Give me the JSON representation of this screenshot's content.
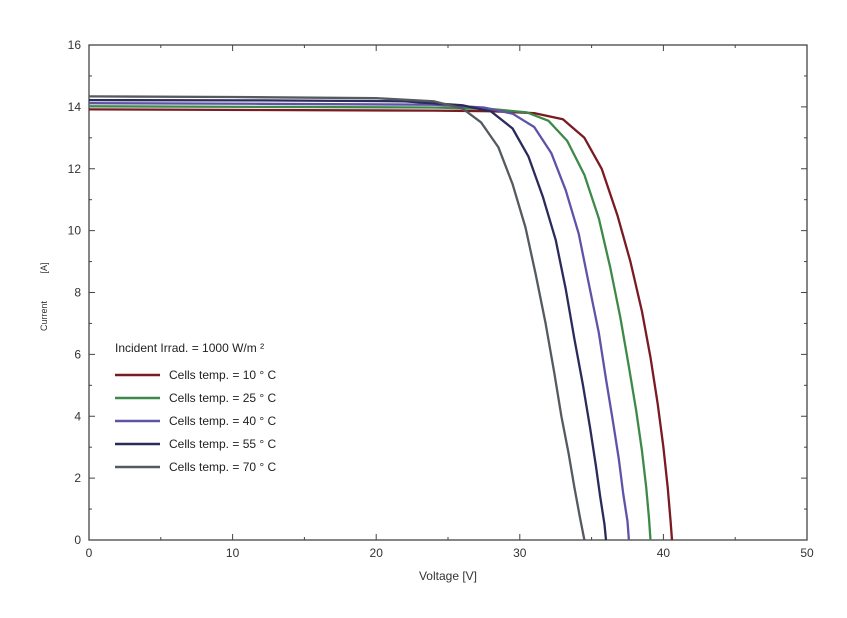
{
  "chart_data": {
    "type": "line",
    "title": "",
    "xlabel": "Voltage  [V]",
    "ylabel": "Current",
    "ylabel_unit": "[A]",
    "xlim": [
      0,
      50
    ],
    "ylim": [
      0,
      16
    ],
    "x_ticks": [
      "0",
      "10",
      "20",
      "30",
      "40",
      "50"
    ],
    "y_ticks": [
      "0",
      "2",
      "4",
      "6",
      "8",
      "10",
      "12",
      "14",
      "16"
    ],
    "grid": false,
    "legend_title": "Incident Irrad. = 1000 W/m ²",
    "legend_position": "lower-left",
    "series": [
      {
        "name": "Cells temp. = 10  ° C",
        "color": "#7a1a22",
        "points": [
          [
            0,
            13.92
          ],
          [
            12,
            13.9
          ],
          [
            24,
            13.88
          ],
          [
            28,
            13.86
          ],
          [
            31,
            13.8
          ],
          [
            33,
            13.6
          ],
          [
            34.5,
            13.0
          ],
          [
            35.7,
            12.0
          ],
          [
            36.8,
            10.5
          ],
          [
            37.7,
            9.0
          ],
          [
            38.5,
            7.4
          ],
          [
            39.1,
            5.9
          ],
          [
            39.6,
            4.4
          ],
          [
            40.0,
            3.0
          ],
          [
            40.3,
            1.7
          ],
          [
            40.5,
            0.6
          ],
          [
            40.6,
            0
          ]
        ]
      },
      {
        "name": "Cells temp. = 25  ° C",
        "color": "#3d8a48",
        "points": [
          [
            0,
            14.02
          ],
          [
            12,
            14.0
          ],
          [
            24,
            13.98
          ],
          [
            28,
            13.93
          ],
          [
            30.5,
            13.82
          ],
          [
            32,
            13.55
          ],
          [
            33.3,
            12.9
          ],
          [
            34.5,
            11.8
          ],
          [
            35.5,
            10.4
          ],
          [
            36.3,
            8.8
          ],
          [
            37.0,
            7.2
          ],
          [
            37.6,
            5.6
          ],
          [
            38.1,
            4.2
          ],
          [
            38.5,
            2.9
          ],
          [
            38.8,
            1.7
          ],
          [
            39.0,
            0.7
          ],
          [
            39.1,
            0
          ]
        ]
      },
      {
        "name": "Cells temp. = 40  ° C",
        "color": "#5d54a8",
        "points": [
          [
            0,
            14.12
          ],
          [
            12,
            14.1
          ],
          [
            24,
            14.07
          ],
          [
            27.5,
            13.98
          ],
          [
            29.5,
            13.78
          ],
          [
            31,
            13.35
          ],
          [
            32.2,
            12.5
          ],
          [
            33.2,
            11.3
          ],
          [
            34.1,
            9.9
          ],
          [
            34.8,
            8.3
          ],
          [
            35.5,
            6.7
          ],
          [
            36.0,
            5.2
          ],
          [
            36.5,
            3.8
          ],
          [
            36.9,
            2.6
          ],
          [
            37.2,
            1.5
          ],
          [
            37.5,
            0.6
          ],
          [
            37.6,
            0
          ]
        ]
      },
      {
        "name": "Cells temp. = 55  ° C",
        "color": "#2a2b5a",
        "points": [
          [
            0,
            14.22
          ],
          [
            12,
            14.21
          ],
          [
            22,
            14.18
          ],
          [
            26,
            14.05
          ],
          [
            28,
            13.85
          ],
          [
            29.5,
            13.3
          ],
          [
            30.6,
            12.4
          ],
          [
            31.6,
            11.1
          ],
          [
            32.5,
            9.7
          ],
          [
            33.2,
            8.1
          ],
          [
            33.8,
            6.5
          ],
          [
            34.4,
            5.0
          ],
          [
            34.9,
            3.6
          ],
          [
            35.3,
            2.4
          ],
          [
            35.6,
            1.4
          ],
          [
            35.9,
            0.5
          ],
          [
            36.0,
            0
          ]
        ]
      },
      {
        "name": "Cells temp. = 70  ° C",
        "color": "#555a60",
        "points": [
          [
            0,
            14.34
          ],
          [
            10,
            14.32
          ],
          [
            20,
            14.28
          ],
          [
            24,
            14.18
          ],
          [
            26,
            13.95
          ],
          [
            27.3,
            13.5
          ],
          [
            28.5,
            12.7
          ],
          [
            29.5,
            11.5
          ],
          [
            30.4,
            10.1
          ],
          [
            31.1,
            8.6
          ],
          [
            31.8,
            7.0
          ],
          [
            32.4,
            5.4
          ],
          [
            32.9,
            4.0
          ],
          [
            33.4,
            2.8
          ],
          [
            33.8,
            1.7
          ],
          [
            34.2,
            0.7
          ],
          [
            34.5,
            0
          ]
        ]
      }
    ]
  }
}
